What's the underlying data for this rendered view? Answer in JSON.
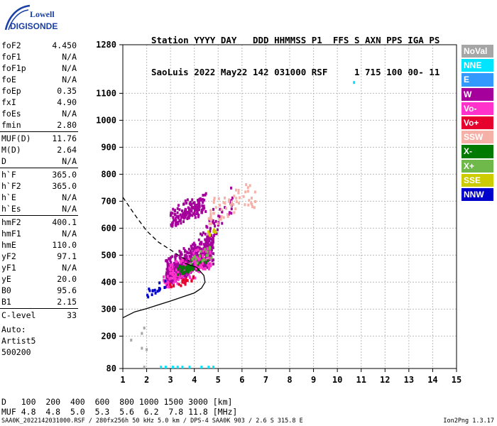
{
  "logo": {
    "line1": "Lowell",
    "line2": "DIGISONDE"
  },
  "header": {
    "line1": "Station YYYY DAY   DDD HHMMSS P1  FFS S AXN PPS IGA PS",
    "line2": "SaoLuis 2022 May22 142 031000 RSF     1 715 100 00- 11"
  },
  "params": [
    {
      "label": "foF2",
      "value": "4.450"
    },
    {
      "label": "foF1",
      "value": "N/A"
    },
    {
      "label": "foF1p",
      "value": "N/A"
    },
    {
      "label": "foE",
      "value": "N/A"
    },
    {
      "label": "foEp",
      "value": "0.35"
    },
    {
      "label": "fxI",
      "value": "4.90"
    },
    {
      "label": "foEs",
      "value": "N/A"
    },
    {
      "label": "fmin",
      "value": "2.80"
    },
    {
      "label": "MUF(D)",
      "value": "11.76"
    },
    {
      "label": "M(D)",
      "value": "2.64"
    },
    {
      "label": "D",
      "value": "N/A"
    },
    {
      "label": "h`F",
      "value": "365.0"
    },
    {
      "label": "h`F2",
      "value": "365.0"
    },
    {
      "label": "h`E",
      "value": "N/A"
    },
    {
      "label": "h`Es",
      "value": "N/A"
    },
    {
      "label": "hmF2",
      "value": "400.1"
    },
    {
      "label": "hmF1",
      "value": "N/A"
    },
    {
      "label": "hmE",
      "value": "110.0"
    },
    {
      "label": "yF2",
      "value": "97.1"
    },
    {
      "label": "yF1",
      "value": "N/A"
    },
    {
      "label": "yE",
      "value": "20.0"
    },
    {
      "label": "B0",
      "value": "95.6"
    },
    {
      "label": "B1",
      "value": "2.15"
    },
    {
      "label": "C-level",
      "value": "33"
    }
  ],
  "autoscaling": {
    "line1": "Auto:",
    "line2": "Artist5",
    "line3": "500200"
  },
  "legend": [
    {
      "label": "NoVal",
      "color": "#a6a6a6"
    },
    {
      "label": "NNE",
      "color": "#00e5ff"
    },
    {
      "label": "E",
      "color": "#3399ff"
    },
    {
      "label": "W",
      "color": "#a6009c"
    },
    {
      "label": "Vo-",
      "color": "#ff33cc"
    },
    {
      "label": "Vo+",
      "color": "#e6002e"
    },
    {
      "label": "SSW",
      "color": "#f5b0a8"
    },
    {
      "label": "X-",
      "color": "#007a00"
    },
    {
      "label": "X+",
      "color": "#6fb84a"
    },
    {
      "label": "SSE",
      "color": "#cccc00"
    },
    {
      "label": "NNW",
      "color": "#0000cc"
    }
  ],
  "muf_table": {
    "d_label": "D",
    "d_values": "100  200  400  600  800 1000 1500 3000 [km]",
    "muf_label": "MUF",
    "muf_values": "4.8  4.8  5.0  5.3  5.6  6.2  7.8 11.8 [MHz]"
  },
  "footer": {
    "left": "SAA0K_2022142031000.RSF / 280fx256h 50 kHz 5.0 km / DPS-4 SAA0K 903 / 2.6 S 315.8 E",
    "right": "Ion2Png 1.3.17"
  },
  "chart_data": {
    "type": "scatter",
    "title": "",
    "xlabel": "",
    "ylabel": "",
    "xlim": [
      1,
      15
    ],
    "x_ticks": [
      1,
      2,
      3,
      4,
      5,
      6,
      7,
      8,
      9,
      10,
      11,
      12,
      13,
      14,
      15
    ],
    "ylim": [
      80,
      1280
    ],
    "y_ticks": [
      80,
      200,
      300,
      400,
      500,
      600,
      700,
      800,
      900,
      1000,
      1100,
      1280
    ],
    "grid": "dashed",
    "series": [
      {
        "name": "W",
        "clusters": [
          {
            "x_range": [
              2.8,
              4.8
            ],
            "y_range": [
              380,
              620
            ],
            "count": 520
          },
          {
            "x_range": [
              3.0,
              4.5
            ],
            "y_range": [
              600,
              760
            ],
            "count": 160
          },
          {
            "x_range": [
              4.5,
              5.6
            ],
            "y_range": [
              520,
              820
            ],
            "count": 40
          }
        ]
      },
      {
        "name": "Vo-",
        "clusters": [
          {
            "x_range": [
              2.7,
              4.7
            ],
            "y_range": [
              370,
              560
            ],
            "count": 120
          }
        ]
      },
      {
        "name": "Vo+",
        "clusters": [
          {
            "x_range": [
              2.9,
              4.0
            ],
            "y_range": [
              370,
              450
            ],
            "count": 20
          }
        ]
      },
      {
        "name": "SSW",
        "clusters": [
          {
            "x_range": [
              4.6,
              6.6
            ],
            "y_range": [
              600,
              820
            ],
            "count": 60
          }
        ]
      },
      {
        "name": "X-",
        "clusters": [
          {
            "x_range": [
              3.3,
              4.6
            ],
            "y_range": [
              420,
              520
            ],
            "count": 40
          }
        ]
      },
      {
        "name": "X+",
        "clusters": [
          {
            "x_range": [
              3.8,
              4.8
            ],
            "y_range": [
              450,
              560
            ],
            "count": 20
          }
        ]
      },
      {
        "name": "SSE",
        "clusters": [
          {
            "x_range": [
              4.5,
              4.9
            ],
            "y_range": [
              560,
              620
            ],
            "count": 8
          }
        ]
      },
      {
        "name": "NNW",
        "clusters": [
          {
            "x_range": [
              2.0,
              2.8
            ],
            "y_range": [
              340,
              420
            ],
            "count": 18
          }
        ]
      },
      {
        "name": "NNE",
        "points": [
          {
            "x": 10.7,
            "y": 1140
          },
          {
            "x": 2.6,
            "y": 85
          },
          {
            "x": 2.8,
            "y": 85
          },
          {
            "x": 3.1,
            "y": 85
          },
          {
            "x": 3.3,
            "y": 85
          },
          {
            "x": 3.5,
            "y": 85
          },
          {
            "x": 3.8,
            "y": 85
          },
          {
            "x": 4.3,
            "y": 85
          },
          {
            "x": 4.6,
            "y": 85
          },
          {
            "x": 4.8,
            "y": 85
          }
        ]
      },
      {
        "name": "NoVal",
        "points": [
          {
            "x": 1.8,
            "y": 210
          },
          {
            "x": 1.9,
            "y": 230
          },
          {
            "x": 1.8,
            "y": 155
          },
          {
            "x": 2.0,
            "y": 150
          },
          {
            "x": 1.9,
            "y": 85
          },
          {
            "x": 1.35,
            "y": 185
          }
        ]
      }
    ],
    "profile_curve": {
      "solid": [
        [
          1.0,
          268
        ],
        [
          1.5,
          290
        ],
        [
          2.0,
          302
        ],
        [
          2.5,
          316
        ],
        [
          3.0,
          330
        ],
        [
          3.5,
          345
        ],
        [
          4.0,
          360
        ],
        [
          4.3,
          378
        ],
        [
          4.45,
          400
        ],
        [
          4.4,
          425
        ],
        [
          4.1,
          455
        ],
        [
          3.6,
          470
        ]
      ],
      "dashed": [
        [
          1.0,
          715
        ],
        [
          1.5,
          650
        ],
        [
          2.0,
          590
        ],
        [
          2.5,
          548
        ],
        [
          3.0,
          520
        ],
        [
          3.5,
          490
        ],
        [
          3.8,
          478
        ]
      ]
    }
  }
}
